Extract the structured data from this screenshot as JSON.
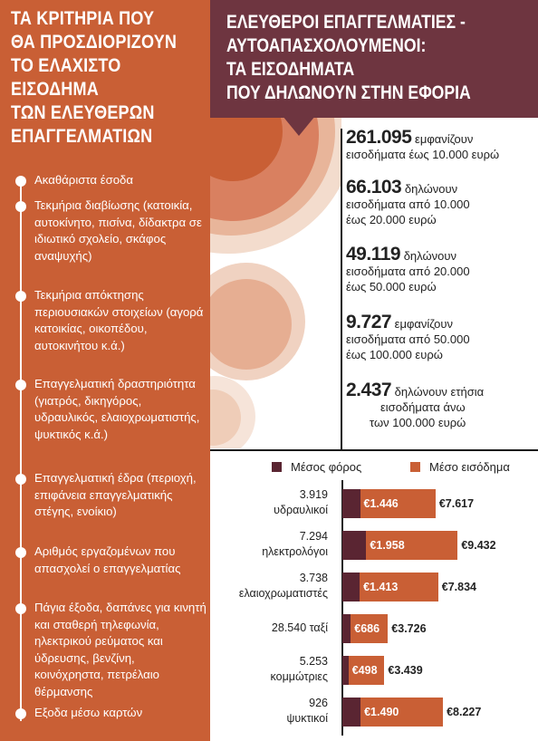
{
  "left_panel": {
    "title_lines": [
      "ΤΑ ΚΡΙΤΗΡΙΑ ΠΟΥ",
      "ΘΑ ΠΡΟΣΔΙΟΡΙΖΟΥΝ",
      "ΤΟ ΕΛΑΧΙΣΤΟ",
      "ΕΙΣΟΔΗΜΑ",
      "ΤΩΝ ΕΛΕΥΘΕΡΩΝ",
      "ΕΠΑΓΓΕΛΜΑΤΙΩΝ"
    ],
    "criteria": [
      "Ακαθάριστα έσοδα",
      "Τεκμήρια διαβίωσης (κατοικία, αυτοκίνητο, πισίνα, δίδακτρα σε ιδιωτικό σχολείο, σκάφος αναψυχής)",
      "Τεκμήρια απόκτησης περιουσιακών στοιχείων (αγορά κατοικίας, οικοπέδου, αυτοκινήτου κ.ά.)",
      "Επαγγελματική δραστηριότητα (γιατρός, δικηγόρος, υδραυλικός, ελαιοχρωματιστής, ψυκτικός κ.ά.)",
      "Επαγγελματική έδρα (περιοχή, επιφάνεια επαγγελματικής στέγης, ενοίκιο)",
      "Αριθμός εργαζομένων που απασχολεί ο επαγγελματίας",
      "Πάγια έξοδα, δαπάνες για κινητή και σταθερή τηλεφωνία, ηλεκτρικού ρεύματος και ύδρευσης, βενζίνη, κοινόχρηστα, πετρέλαιο θέρμανσης",
      "Εξοδα μέσω καρτών"
    ]
  },
  "right_panel": {
    "title_lines": [
      "ΕΛΕΥΘΕΡΟΙ ΕΠΑΓΓΕΛΜΑΤΙΕΣ -",
      "ΑΥΤΟΑΠΑΣΧΟΛΟΥΜΕΝΟΙ:",
      "ΤΑ ΕΙΣΟΔΗΜΑΤΑ",
      "ΠΟΥ ΔΗΛΩΝΟΥΝ ΣΤΗΝ ΕΦΟΡΙΑ"
    ],
    "stats": [
      {
        "number": "261.095",
        "text_lines": [
          " εμφανίζουν",
          "εισοδήματα έως 10.000 ευρώ"
        ]
      },
      {
        "number": "66.103",
        "text_lines": [
          " δηλώνουν",
          "εισοδήματα από 10.000",
          "έως 20.000 ευρώ"
        ]
      },
      {
        "number": "49.119",
        "text_lines": [
          " δηλώνουν",
          "εισοδήματα από 20.000",
          "έως 50.000 ευρώ"
        ]
      },
      {
        "number": "9.727",
        "text_lines": [
          " εμφανίζουν",
          "εισοδήματα από 50.000",
          "έως 100.000 ευρώ"
        ]
      },
      {
        "number": "2.437",
        "text_lines": [
          " δηλώνουν ετήσια",
          "εισοδήματα άνω",
          "των 100.000 ευρώ"
        ]
      }
    ]
  },
  "colors": {
    "tax": "#5a2532",
    "income": "#c95f35",
    "header": "#6e3540",
    "panel": "#c95f35"
  },
  "chart_data": {
    "type": "bar",
    "legend": [
      "Μέσος φόρος",
      "Μέσο εισόδημα"
    ],
    "categories": [
      {
        "lines": [
          "3.919",
          "υδραυλικοί"
        ]
      },
      {
        "lines": [
          "7.294",
          "ηλεκτρολόγοι"
        ]
      },
      {
        "lines": [
          "3.738",
          "ελαιοχρωματιστές"
        ]
      },
      {
        "lines": [
          "28.540 ταξί"
        ]
      },
      {
        "lines": [
          "5.253",
          "κομμώτριες"
        ]
      },
      {
        "lines": [
          "926",
          "ψυκτικοί"
        ]
      }
    ],
    "series": [
      {
        "name": "Μέσος φόρος",
        "values": [
          1446,
          1958,
          1413,
          686,
          498,
          1490
        ],
        "labels": [
          "€1.446",
          "€1.958",
          "€1.413",
          "€686",
          "€498",
          "€1.490"
        ]
      },
      {
        "name": "Μέσο εισόδημα",
        "values": [
          7617,
          9432,
          7834,
          3726,
          3439,
          8227
        ],
        "labels": [
          "€7.617",
          "€9.432",
          "€7.834",
          "€3.726",
          "€3.439",
          "€8.227"
        ]
      }
    ]
  }
}
